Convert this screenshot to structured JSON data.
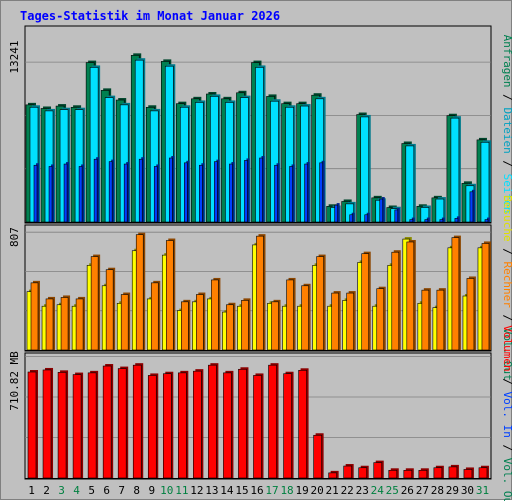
{
  "chart_data": {
    "type": "bar",
    "title": "Tages-Statistik im Monat Januar 2026",
    "days": [
      "1",
      "2",
      "3",
      "4",
      "5",
      "6",
      "7",
      "8",
      "9",
      "10",
      "11",
      "12",
      "13",
      "14",
      "15",
      "16",
      "17",
      "18",
      "19",
      "20",
      "21",
      "22",
      "23",
      "24",
      "25",
      "26",
      "27",
      "28",
      "29",
      "30",
      "31"
    ],
    "weekend_days": [
      "3",
      "4",
      "10",
      "11",
      "17",
      "18",
      "24",
      "25",
      "31"
    ],
    "colors": {
      "title": "#0000ff",
      "weekday_label": "#000000",
      "weekend_label": "#008040",
      "anfragen": "#008050",
      "dateien": "#00e0ff",
      "seiten": "#0040ff",
      "besuche": "#ffff00",
      "rechner": "#ff8000",
      "volumen": "#ff0000"
    },
    "top_panel": {
      "scale_label": "13241",
      "scale_max": 13241,
      "legend": [
        {
          "text": "Anfragen",
          "color": "#008050"
        },
        {
          "text": " / ",
          "color": "#000000"
        },
        {
          "text": "Dateien",
          "color": "#00a0c0"
        },
        {
          "text": " / ",
          "color": "#000000"
        },
        {
          "text": "Seiten",
          "color": "#00e0ff"
        }
      ],
      "series": [
        {
          "name": "Anfragen",
          "values": [
            9700,
            9400,
            9600,
            9500,
            13200,
            10900,
            10100,
            13800,
            9500,
            13300,
            9800,
            10200,
            10600,
            10200,
            10700,
            13200,
            10400,
            9800,
            9800,
            10500,
            1300,
            1700,
            8900,
            2000,
            1200,
            6500,
            1300,
            2000,
            8800,
            3200,
            6800
          ]
        },
        {
          "name": "Dateien",
          "values": [
            9500,
            9200,
            9300,
            9300,
            12800,
            10300,
            9700,
            13400,
            9200,
            12900,
            9500,
            9900,
            10400,
            9900,
            10300,
            12800,
            10000,
            9500,
            9600,
            10200,
            1200,
            1500,
            8700,
            1800,
            1100,
            6300,
            1200,
            1900,
            8600,
            3000,
            6600
          ]
        },
        {
          "name": "Seiten",
          "values": [
            4700,
            4600,
            4800,
            4600,
            5200,
            5000,
            4800,
            5200,
            4600,
            5300,
            4900,
            4700,
            5000,
            4800,
            5100,
            5300,
            4700,
            4600,
            4800,
            4900,
            1400,
            600,
            600,
            1900,
            1000,
            200,
            200,
            200,
            300,
            2500,
            200
          ]
        }
      ]
    },
    "middle_panel": {
      "scale_label": "807",
      "scale_max": 807,
      "legend": [
        {
          "text": "Besuche",
          "color": "#e0e000"
        },
        {
          "text": " / ",
          "color": "#000000"
        },
        {
          "text": "Rechner",
          "color": "#ff8000"
        },
        {
          "text": " / ",
          "color": "#000000"
        },
        {
          "text": "Vol. Out",
          "color": "#008050"
        }
      ],
      "series": [
        {
          "name": "Besuche",
          "values": [
            400,
            300,
            310,
            300,
            580,
            440,
            320,
            680,
            350,
            650,
            270,
            330,
            350,
            260,
            300,
            720,
            320,
            300,
            300,
            580,
            300,
            340,
            600,
            300,
            580,
            760,
            320,
            290,
            700,
            370,
            700
          ]
        },
        {
          "name": "Rechner",
          "values": [
            460,
            350,
            360,
            350,
            640,
            550,
            380,
            790,
            460,
            750,
            330,
            380,
            480,
            310,
            340,
            780,
            330,
            480,
            440,
            640,
            390,
            390,
            660,
            420,
            670,
            740,
            410,
            410,
            770,
            490,
            730
          ]
        }
      ]
    },
    "bottom_panel": {
      "scale_label": "710.82 MB",
      "scale_max": 710.82,
      "legend": [
        {
          "text": "Volumen",
          "color": "#ff0000"
        },
        {
          "text": " / ",
          "color": "#000000"
        },
        {
          "text": "Vol. In",
          "color": "#0040ff"
        },
        {
          "text": " / ",
          "color": "#000000"
        },
        {
          "text": "Vol. Out",
          "color": "#008050"
        }
      ],
      "series": [
        {
          "name": "Volumen",
          "values": [
            620,
            632,
            618,
            605,
            615,
            655,
            640,
            660,
            600,
            610,
            615,
            625,
            660,
            615,
            636,
            600,
            660,
            610,
            630,
            250,
            30,
            70,
            60,
            90,
            45,
            45,
            45,
            60,
            65,
            50,
            60
          ]
        }
      ]
    }
  }
}
